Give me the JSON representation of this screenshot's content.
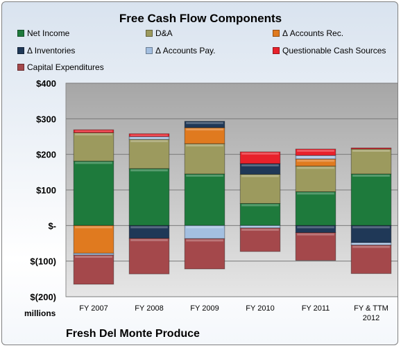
{
  "chart_data": {
    "type": "bar",
    "stacked": true,
    "title": "Free Cash Flow Components",
    "subtitle": "Fresh Del Monte Produce",
    "units_label": "millions",
    "categories": [
      [
        "FY 2007"
      ],
      [
        "FY 2008"
      ],
      [
        "FY 2009"
      ],
      [
        "FY 2010"
      ],
      [
        "FY 2011"
      ],
      [
        "FY & TTM",
        "2012"
      ]
    ],
    "ylim": [
      -200,
      400
    ],
    "yticks": [
      -200,
      -100,
      0,
      100,
      200,
      300,
      400
    ],
    "ytick_labels": [
      "$(200)",
      "$(100)",
      "$-",
      "$100",
      "$200",
      "$300",
      "$400"
    ],
    "grid": true,
    "legend_position": "top",
    "series": [
      {
        "name": "Net Income",
        "color": "#1e7a3c",
        "values": [
          181,
          160,
          145,
          62,
          95,
          145
        ]
      },
      {
        "name": "D&A",
        "color": "#9c9a5e",
        "values": [
          80,
          82,
          85,
          82,
          72,
          70
        ]
      },
      {
        "name": "Δ Accounts Rec.",
        "color": "#e07a1f",
        "values": [
          -78,
          0,
          45,
          0,
          20,
          0
        ]
      },
      {
        "name": "Δ Inventories",
        "color": "#1f3857",
        "values": [
          0,
          -36,
          18,
          30,
          -20,
          -48
        ]
      },
      {
        "name": "Δ Accounts Pay.",
        "color": "#a3bfe0",
        "values": [
          -5,
          8,
          -37,
          -7,
          10,
          -7
        ]
      },
      {
        "name": "Questionable Cash Sources",
        "color": "#e8212b",
        "values": [
          8,
          8,
          0,
          33,
          18,
          3
        ]
      },
      {
        "name": "Capital Expenditures",
        "color": "#a4484b",
        "values": [
          -82,
          -100,
          -85,
          -66,
          -78,
          -80
        ]
      }
    ]
  }
}
